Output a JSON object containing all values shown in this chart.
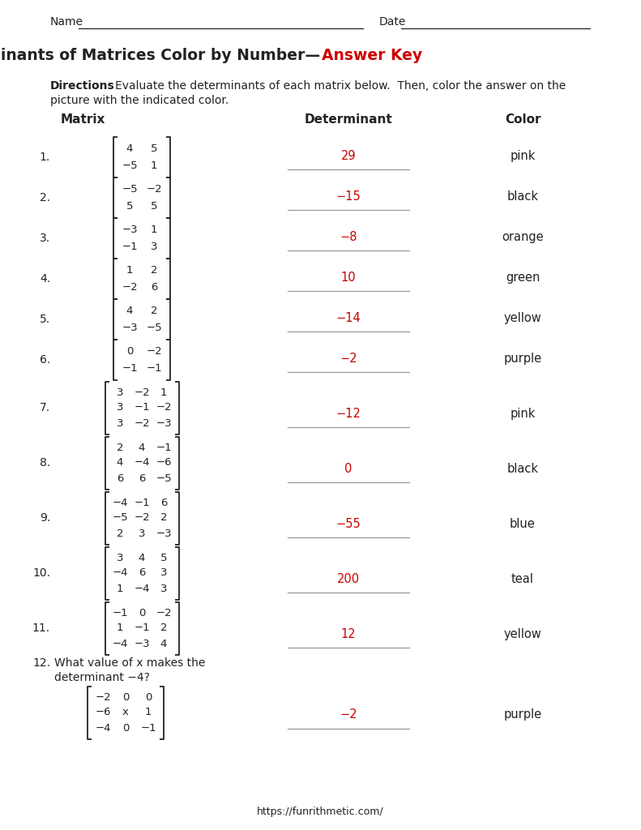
{
  "title_black": "Determinants of Matrices Color by Number—",
  "title_red": "Answer Key",
  "directions_bold": "Directions",
  "directions_rest": ": Evaluate the determinants of each matrix below.  Then, color the answer on the",
  "directions_line2": "picture with the indicated color.",
  "name_label": "Name",
  "date_label": "Date",
  "col_headers": [
    "Matrix",
    "Determinant",
    "Color"
  ],
  "problems": [
    {
      "num": "1.",
      "matrix": [
        [
          "4",
          "5"
        ],
        [
          "−5",
          "1"
        ]
      ],
      "det": "29",
      "color_word": "pink",
      "size": 2
    },
    {
      "num": "2.",
      "matrix": [
        [
          "−5",
          "−2"
        ],
        [
          "5",
          "5"
        ]
      ],
      "det": "−15",
      "color_word": "black",
      "size": 2
    },
    {
      "num": "3.",
      "matrix": [
        [
          "−3",
          "1"
        ],
        [
          "−1",
          "3"
        ]
      ],
      "det": "−8",
      "color_word": "orange",
      "size": 2
    },
    {
      "num": "4.",
      "matrix": [
        [
          "1",
          "2"
        ],
        [
          "−2",
          "6"
        ]
      ],
      "det": "10",
      "color_word": "green",
      "size": 2
    },
    {
      "num": "5.",
      "matrix": [
        [
          "4",
          "2"
        ],
        [
          "−3",
          "−5"
        ]
      ],
      "det": "−14",
      "color_word": "yellow",
      "size": 2
    },
    {
      "num": "6.",
      "matrix": [
        [
          "0",
          "−2"
        ],
        [
          "−1",
          "−1"
        ]
      ],
      "det": "−2",
      "color_word": "purple",
      "size": 2
    },
    {
      "num": "7.",
      "matrix": [
        [
          "3",
          "−2",
          "1"
        ],
        [
          "3",
          "−1",
          "−2"
        ],
        [
          "3",
          "−2",
          "−3"
        ]
      ],
      "det": "−12",
      "color_word": "pink",
      "size": 3
    },
    {
      "num": "8.",
      "matrix": [
        [
          "2",
          "4",
          "−1"
        ],
        [
          "4",
          "−4",
          "−6"
        ],
        [
          "6",
          "6",
          "−5"
        ]
      ],
      "det": "0",
      "color_word": "black",
      "size": 3
    },
    {
      "num": "9.",
      "matrix": [
        [
          "−4",
          "−1",
          "6"
        ],
        [
          "−5",
          "−2",
          "2"
        ],
        [
          "2",
          "3",
          "−3"
        ]
      ],
      "det": "−55",
      "color_word": "blue",
      "size": 3
    },
    {
      "num": "10.",
      "matrix": [
        [
          "3",
          "4",
          "5"
        ],
        [
          "−4",
          "6",
          "3"
        ],
        [
          "1",
          "−4",
          "3"
        ]
      ],
      "det": "200",
      "color_word": "teal",
      "size": 3
    },
    {
      "num": "11.",
      "matrix": [
        [
          "−1",
          "0",
          "−2"
        ],
        [
          "1",
          "−1",
          "2"
        ],
        [
          "−4",
          "−3",
          "4"
        ]
      ],
      "det": "12",
      "color_word": "yellow",
      "size": 3
    },
    {
      "num": "12.",
      "question_line1": "What value of x makes the",
      "question_line2": "determinant −4?",
      "question_x_italic": "x",
      "matrix": [
        [
          "−2",
          "0",
          "0"
        ],
        [
          "−6",
          "x",
          "1"
        ],
        [
          "−4",
          "0",
          "−1"
        ]
      ],
      "det": "−2",
      "color_word": "purple",
      "size": 3
    }
  ],
  "footer": "https://funrithmetic.com/",
  "bg_color": "#ffffff",
  "text_color": "#222222",
  "red_color": "#cc0000",
  "line_color": "#999999",
  "matrix_fs": 9.5,
  "body_fs": 10,
  "header_fs": 11,
  "title_fs": 13.5
}
